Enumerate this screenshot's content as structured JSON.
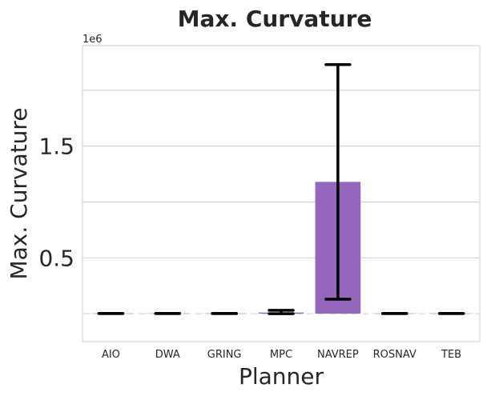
{
  "chart_data": {
    "type": "bar",
    "title": "Max. Curvature",
    "xlabel": "Planner",
    "ylabel": "Max. Curvature",
    "y_offset_label": "1e6",
    "y_scale": 1000000,
    "ylim": [
      -250000,
      2400000
    ],
    "yticks": [
      0.5,
      1.5
    ],
    "ygrid": [
      0,
      0.5,
      1.0,
      1.5,
      2.0
    ],
    "grid": true,
    "bar_color": "#9467bd",
    "error_bar_color": "#000000",
    "categories": [
      "AIO",
      "DWA",
      "GRING",
      "MPC",
      "NAVREP",
      "ROSNAV",
      "TEB"
    ],
    "values": [
      2000,
      2000,
      2000,
      10000,
      1180000,
      2000,
      2000
    ],
    "error_low": [
      2000,
      2000,
      2000,
      0,
      130000,
      2000,
      2000
    ],
    "error_high": [
      2000,
      2000,
      2000,
      30000,
      2230000,
      2000,
      2000
    ]
  }
}
